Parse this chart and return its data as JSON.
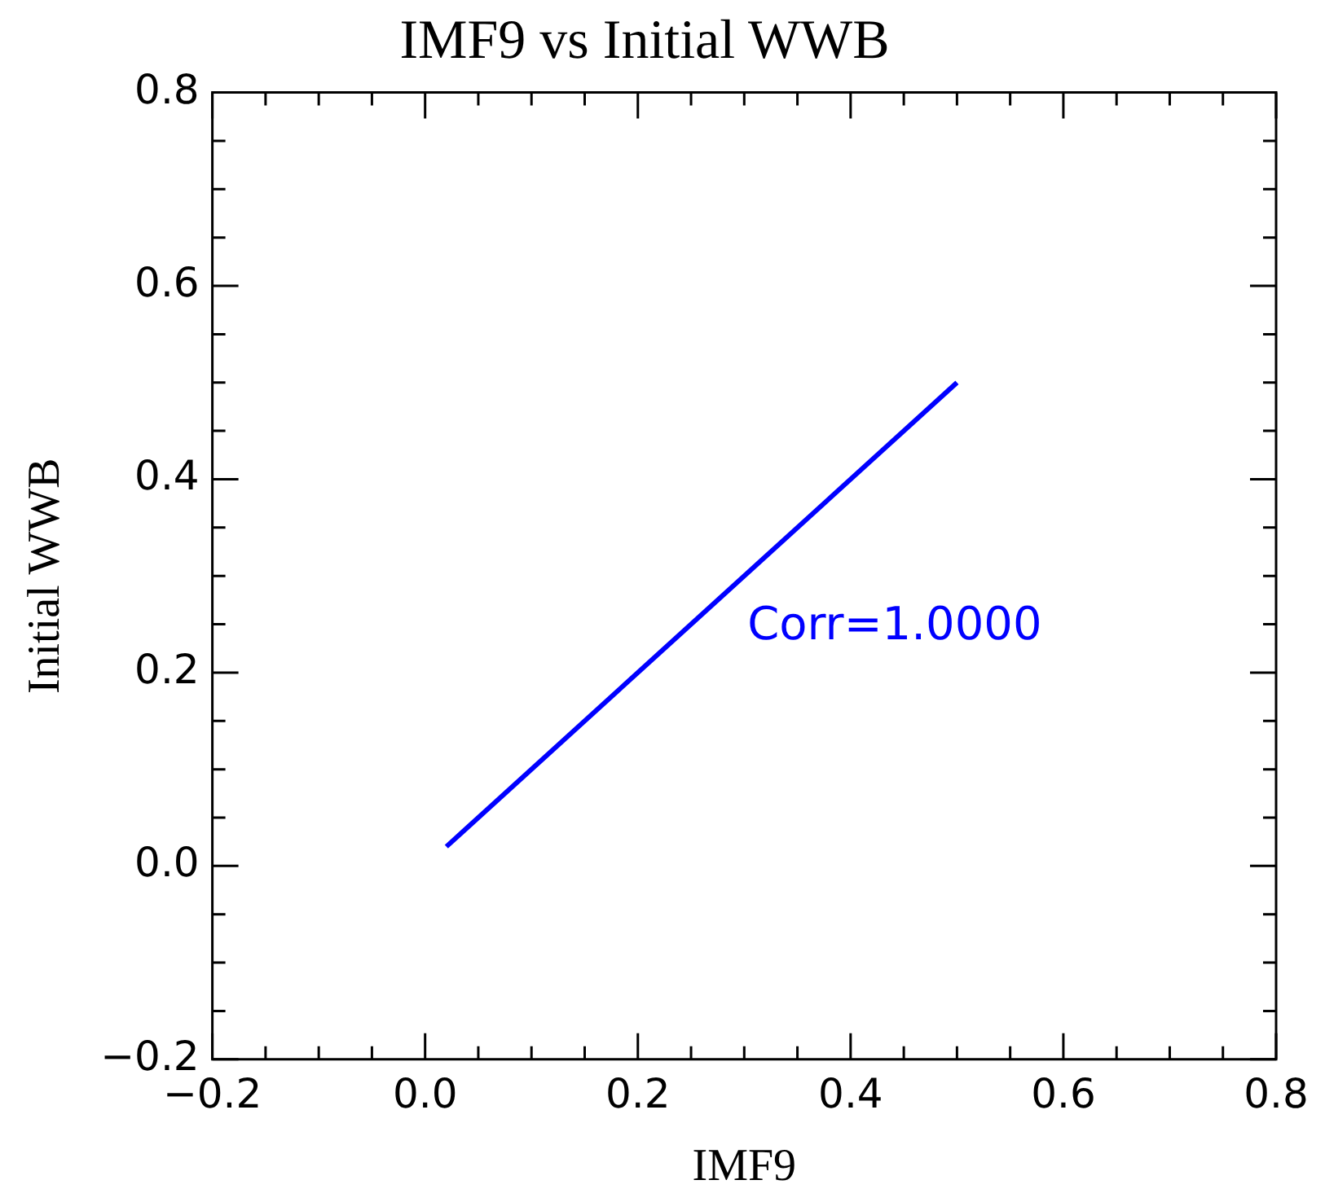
{
  "chart_data": {
    "type": "line",
    "title": "IMF9 vs Initial WWB",
    "xlabel": "IMF9",
    "ylabel": "Initial WWB",
    "x": [
      0.02,
      0.5
    ],
    "series": [
      {
        "color": "#0000ff",
        "values": [
          0.02,
          0.5
        ]
      }
    ],
    "xlim": [
      -0.2,
      0.8
    ],
    "xticks": [
      {
        "value": -0.2,
        "label": "−0.2"
      },
      {
        "value": 0,
        "label": "0.0"
      },
      {
        "value": 0.2,
        "label": "0.2"
      },
      {
        "value": 0.4,
        "label": "0.4"
      },
      {
        "value": 0.6,
        "label": "0.6"
      },
      {
        "value": 0.8,
        "label": "0.8"
      }
    ],
    "ylim": [
      -0.2,
      0.8
    ],
    "yticks": [
      {
        "value": -0.2,
        "label": "−0.2"
      },
      {
        "value": 0,
        "label": "0.0"
      },
      {
        "value": 0.2,
        "label": "0.2"
      },
      {
        "value": 0.4,
        "label": "0.4"
      },
      {
        "value": 0.6,
        "label": "0.6"
      },
      {
        "value": 0.8,
        "label": "0.8"
      }
    ],
    "annotations": [
      "Corr=1.0000"
    ],
    "grid": false,
    "legend": false,
    "marker": "none",
    "line_style": "solid"
  }
}
